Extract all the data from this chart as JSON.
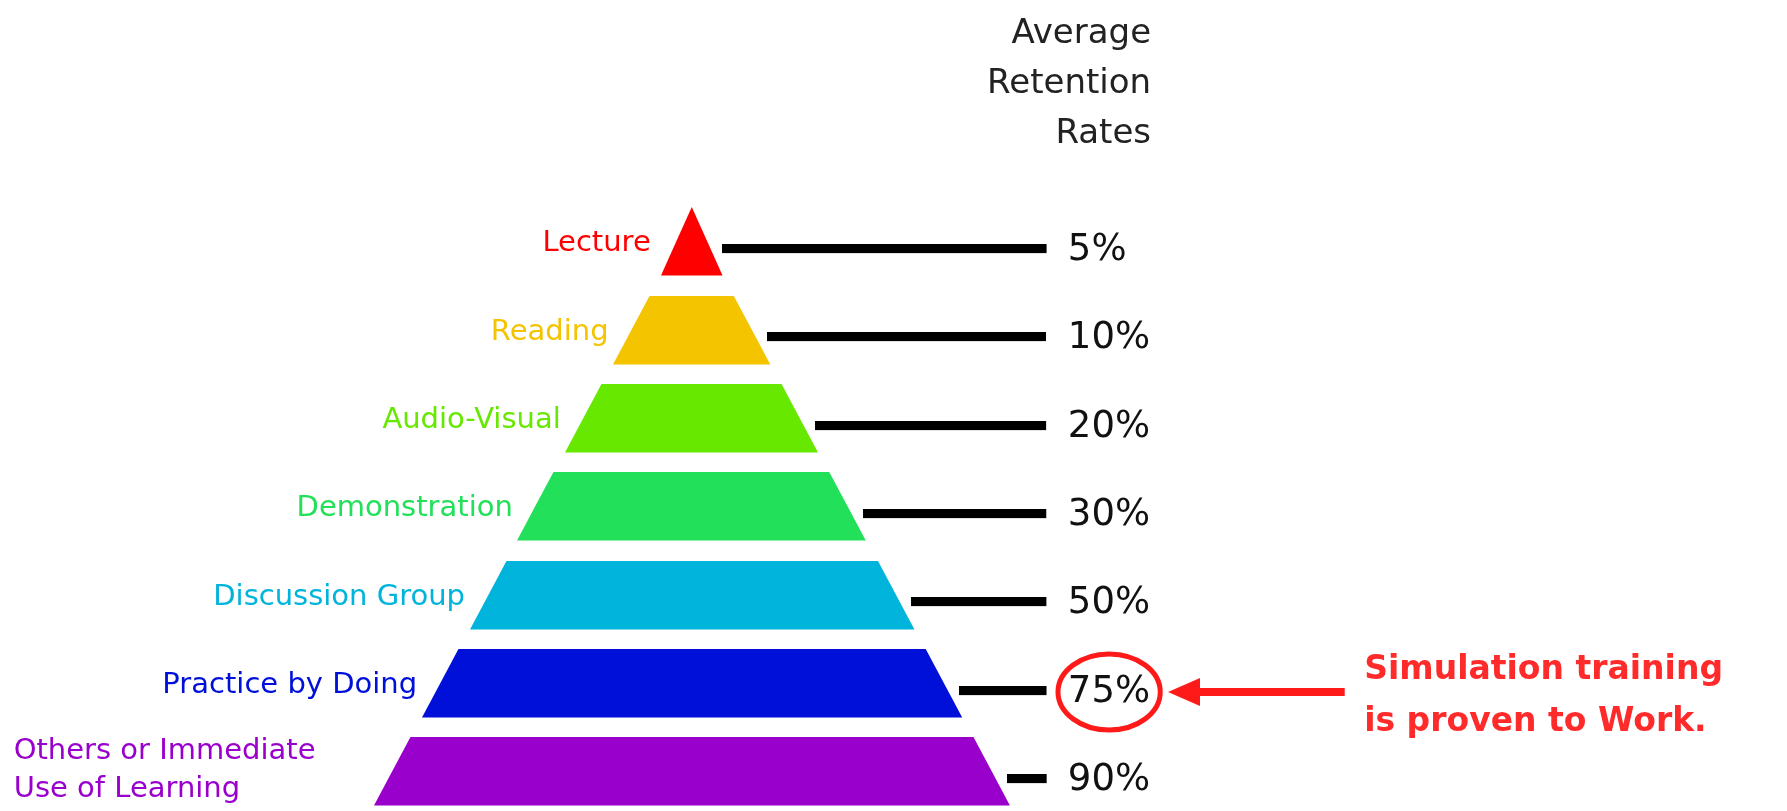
{
  "chart_data": {
    "type": "other",
    "title": "Average Retention Rates",
    "categories": [
      "Lecture",
      "Reading",
      "Audio-Visual",
      "Demonstration",
      "Discussion Group",
      "Practice by Doing",
      "Others or Immediate Use of Learning"
    ],
    "values": [
      5,
      10,
      20,
      30,
      50,
      75,
      90
    ],
    "value_labels": [
      "5%",
      "10%",
      "20%",
      "30%",
      "50%",
      "75%",
      "90%"
    ],
    "colors": [
      "#ff0000",
      "#f5c400",
      "#66e800",
      "#22e05a",
      "#00b4dc",
      "#0010d8",
      "#9900cc"
    ],
    "annotations": [
      {
        "text": "Simulation training\nis proven to Work.",
        "x": "Practice by Doing"
      }
    ]
  }
}
